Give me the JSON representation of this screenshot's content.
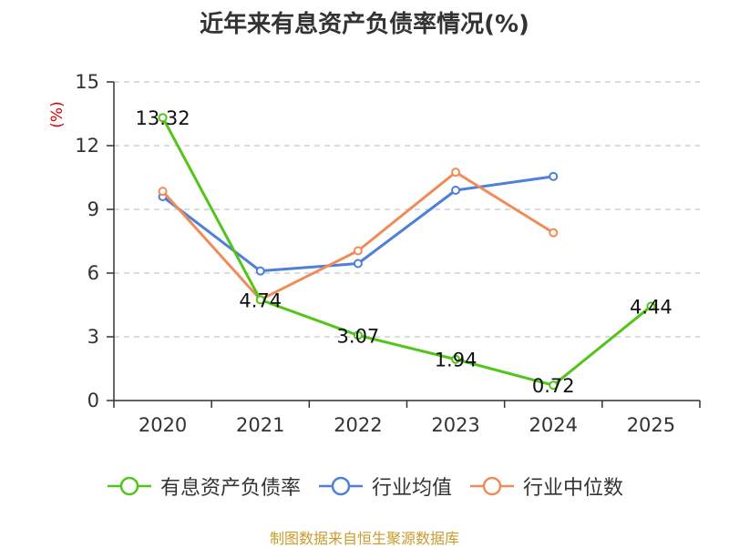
{
  "title": "近年来有息资产负债率情况(%)",
  "source": "制图数据来自恒生聚源数据库",
  "chart_data": {
    "type": "line",
    "title": "近年来有息资产负债率情况(%)",
    "ylabel": "(%)",
    "xlabel": "",
    "categories": [
      "2020",
      "2021",
      "2022",
      "2023",
      "2024",
      "2025"
    ],
    "ylim": [
      0,
      15
    ],
    "yticks": [
      0,
      3,
      6,
      9,
      12,
      15
    ],
    "grid": true,
    "legend_position": "bottom",
    "series": [
      {
        "name": "有息资产负债率",
        "color": "#52c41a",
        "values": [
          13.32,
          4.74,
          3.07,
          1.94,
          0.72,
          4.44
        ],
        "labels": [
          "13.32",
          "4.74",
          "3.07",
          "1.94",
          "0.72",
          "4.44"
        ]
      },
      {
        "name": "行业均值",
        "color": "#4e7fd9",
        "values": [
          9.6,
          6.1,
          6.45,
          9.9,
          10.55,
          null
        ]
      },
      {
        "name": "行业中位数",
        "color": "#f08c5a",
        "values": [
          9.85,
          4.75,
          7.05,
          10.75,
          7.9,
          null
        ]
      }
    ]
  }
}
